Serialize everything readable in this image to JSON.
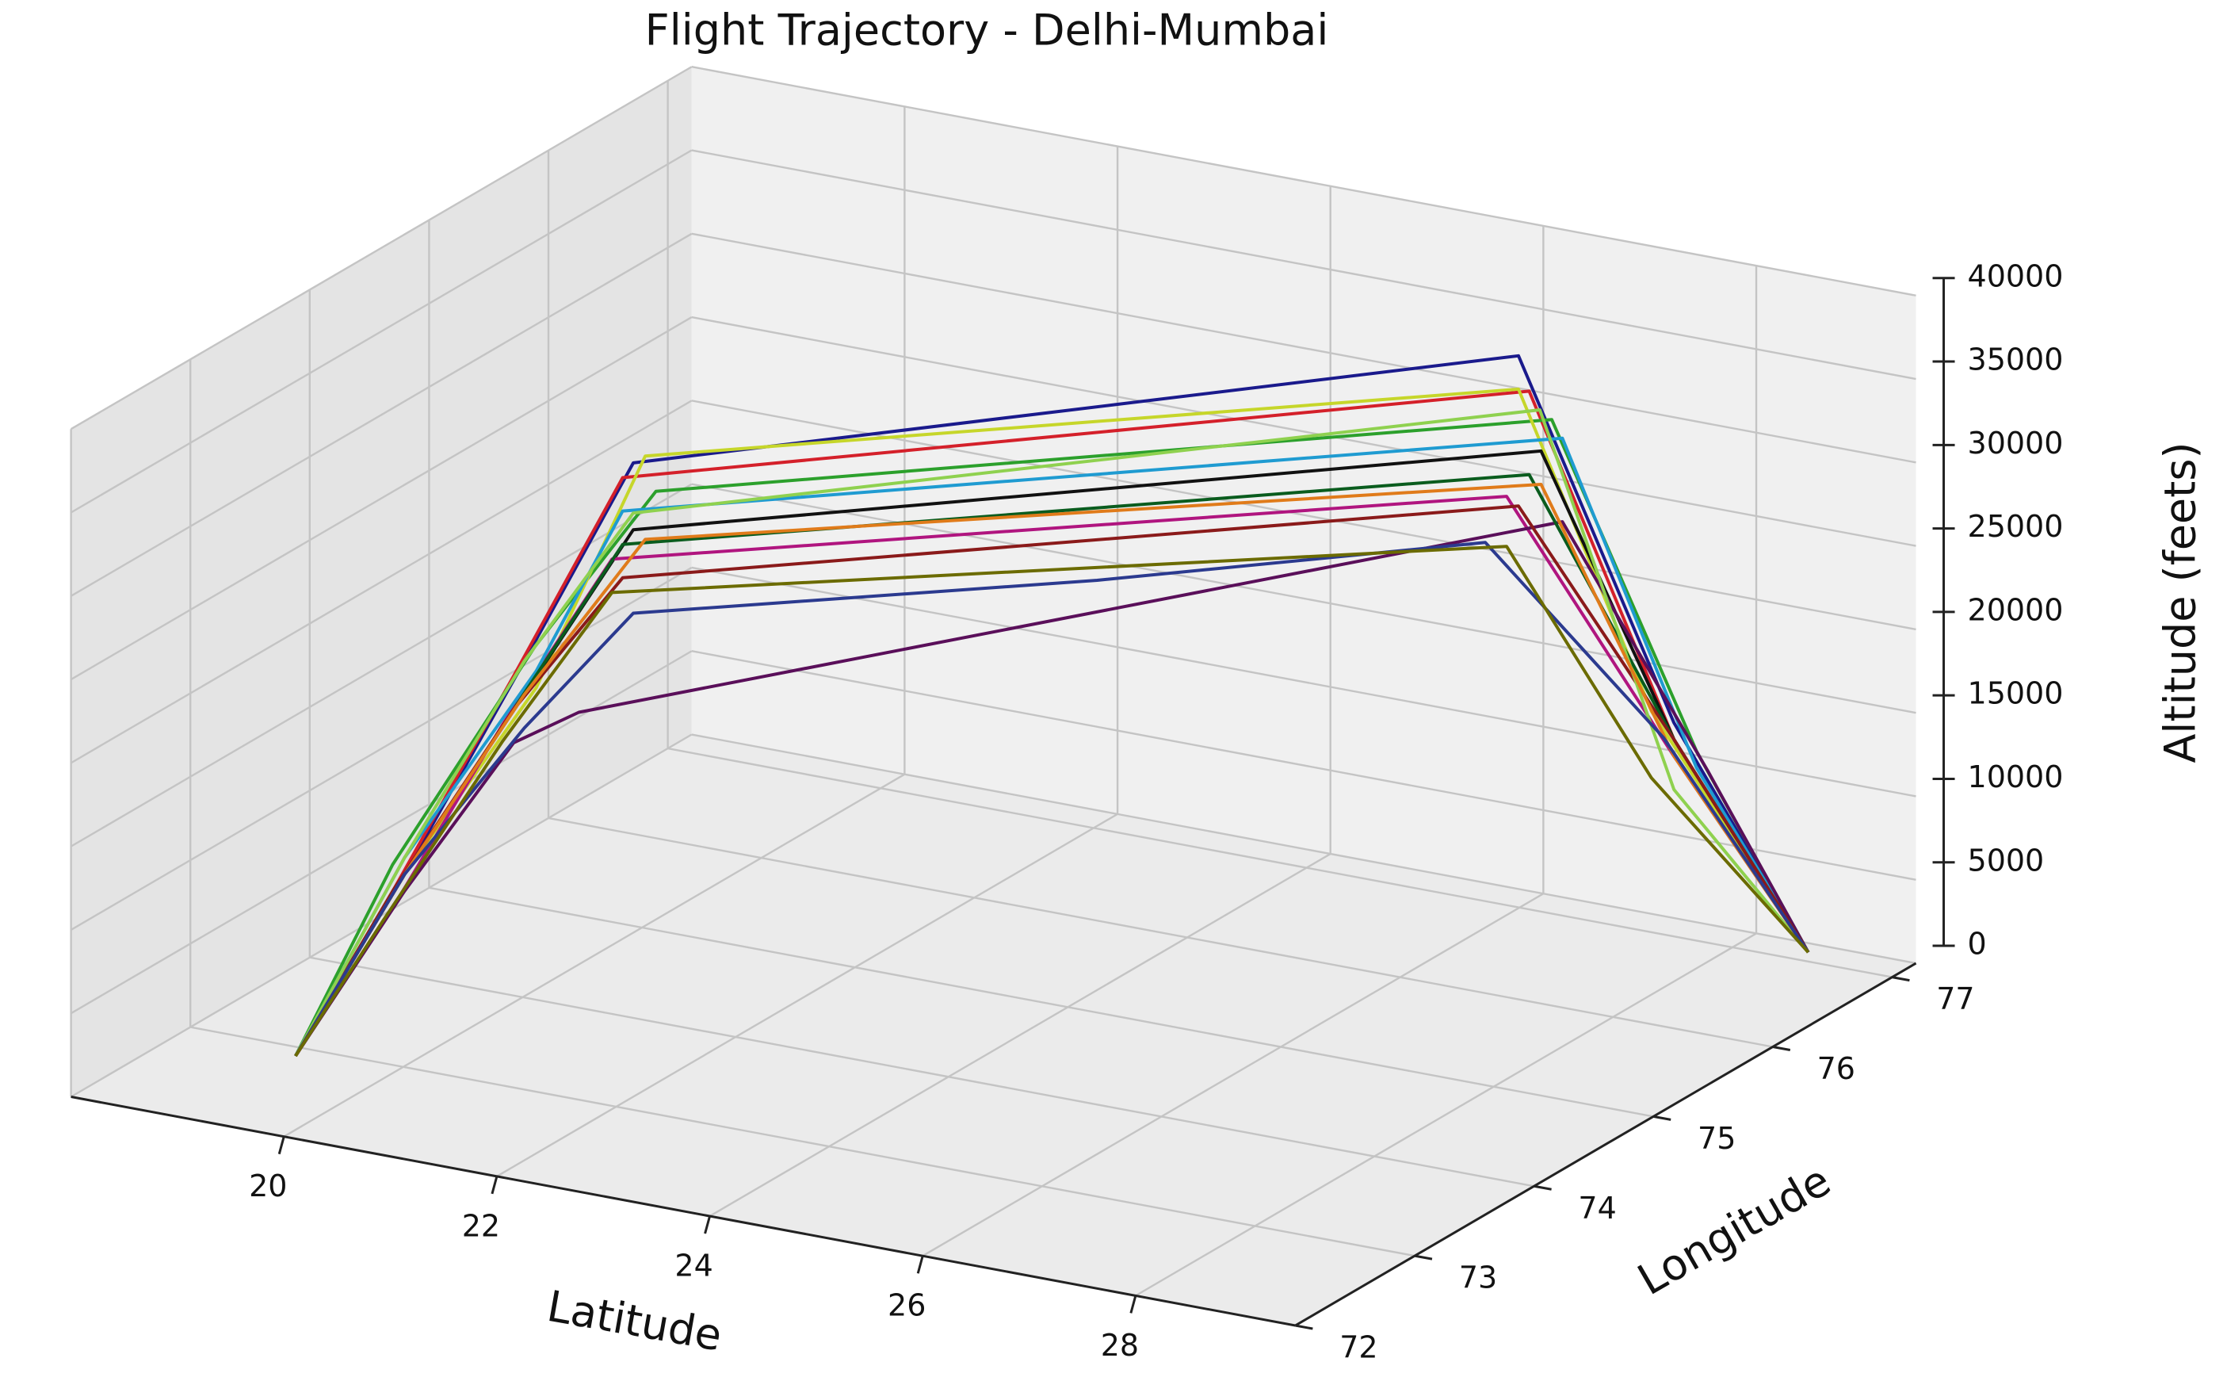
{
  "chart_data": {
    "type": "line3d",
    "title": "Flight Trajectory - Delhi-Mumbai",
    "x_label": "Latitude",
    "y_label": "Longitude",
    "z_label": "Altitude (feets)",
    "xlim": [
      18,
      29.5
    ],
    "xticks": [
      20,
      22,
      24,
      26,
      28
    ],
    "ylim": [
      72,
      77.2
    ],
    "yticks": [
      72,
      73,
      74,
      75,
      76,
      77
    ],
    "zlim": [
      0,
      40000
    ],
    "zticks": [
      0,
      5000,
      10000,
      15000,
      20000,
      25000,
      30000,
      35000,
      40000
    ],
    "grid": true,
    "series": [
      {
        "color": "#1a1a8c",
        "x": [
          19.1,
          19.9,
          20.8,
          21.6,
          27.0,
          27.9,
          28.6
        ],
        "y": [
          72.9,
          73.1,
          73.3,
          73.5,
          76.1,
          76.6,
          77.1
        ],
        "z": [
          0,
          11000,
          24000,
          36000,
          38000,
          15000,
          0
        ]
      },
      {
        "color": "#d4202a",
        "x": [
          19.1,
          19.8,
          20.7,
          21.5,
          27.1,
          27.9,
          28.6
        ],
        "y": [
          72.9,
          73.1,
          73.3,
          73.5,
          76.1,
          76.6,
          77.1
        ],
        "z": [
          0,
          10000,
          23000,
          35000,
          36000,
          14000,
          0
        ]
      },
      {
        "color": "#2ca02c",
        "x": [
          19.1,
          19.9,
          20.9,
          21.7,
          27.2,
          28.0,
          28.6
        ],
        "y": [
          72.9,
          73.0,
          73.3,
          73.6,
          76.2,
          76.7,
          77.1
        ],
        "z": [
          0,
          12000,
          25000,
          34000,
          34000,
          13000,
          0
        ]
      },
      {
        "color": "#c6d62a",
        "x": [
          19.1,
          19.8,
          20.8,
          21.6,
          27.0,
          27.8,
          28.6
        ],
        "y": [
          72.9,
          73.1,
          73.4,
          73.6,
          76.1,
          76.5,
          77.1
        ],
        "z": [
          0,
          10000,
          22000,
          36000,
          36000,
          16000,
          0
        ]
      },
      {
        "color": "#111111",
        "x": [
          19.1,
          19.9,
          20.8,
          21.6,
          27.1,
          27.9,
          28.6
        ],
        "y": [
          72.9,
          73.1,
          73.3,
          73.5,
          76.2,
          76.6,
          77.1
        ],
        "z": [
          0,
          11000,
          22000,
          32000,
          32000,
          14000,
          0
        ]
      },
      {
        "color": "#b0157f",
        "x": [
          19.1,
          19.8,
          20.6,
          21.4,
          27.0,
          27.9,
          28.6
        ],
        "y": [
          72.9,
          73.1,
          73.3,
          73.5,
          76.0,
          76.6,
          77.1
        ],
        "z": [
          0,
          9000,
          20000,
          30000,
          30000,
          13000,
          0
        ]
      },
      {
        "color": "#1f9bd1",
        "x": [
          19.1,
          19.9,
          20.8,
          21.5,
          27.3,
          28.0,
          28.6
        ],
        "y": [
          72.9,
          73.1,
          73.4,
          73.5,
          76.2,
          76.7,
          77.1
        ],
        "z": [
          0,
          12000,
          23000,
          33000,
          33000,
          12000,
          0
        ]
      },
      {
        "color": "#5a0f5a",
        "x": [
          19.1,
          19.9,
          20.7,
          21.2,
          27.3,
          28.1,
          28.6
        ],
        "y": [
          72.9,
          73.1,
          73.3,
          73.4,
          76.2,
          76.7,
          77.1
        ],
        "z": [
          0,
          10000,
          19000,
          21000,
          28000,
          12000,
          0
        ]
      },
      {
        "color": "#0a5c1e",
        "x": [
          19.1,
          19.9,
          20.7,
          21.5,
          27.1,
          27.9,
          28.6
        ],
        "y": [
          72.9,
          73.1,
          73.3,
          73.5,
          76.1,
          76.6,
          77.1
        ],
        "z": [
          0,
          11000,
          21000,
          31000,
          31000,
          14000,
          0
        ]
      },
      {
        "color": "#8a1a1a",
        "x": [
          19.1,
          19.8,
          20.7,
          21.5,
          27.0,
          27.9,
          28.6
        ],
        "y": [
          72.9,
          73.1,
          73.3,
          73.5,
          76.1,
          76.6,
          77.1
        ],
        "z": [
          0,
          10000,
          21000,
          29000,
          29000,
          14000,
          0
        ]
      },
      {
        "color": "#8fd14f",
        "x": [
          19.1,
          19.9,
          20.8,
          21.6,
          27.2,
          27.9,
          28.6
        ],
        "y": [
          72.9,
          73.1,
          73.3,
          73.5,
          76.1,
          76.6,
          77.1
        ],
        "z": [
          0,
          12000,
          24000,
          33000,
          35000,
          11000,
          0
        ]
      },
      {
        "color": "#e07b1a",
        "x": [
          19.1,
          19.9,
          20.8,
          21.6,
          27.1,
          27.9,
          28.6
        ],
        "y": [
          72.9,
          73.1,
          73.3,
          73.6,
          76.2,
          76.6,
          77.1
        ],
        "z": [
          0,
          11000,
          22000,
          31000,
          30000,
          13000,
          0
        ]
      },
      {
        "color": "#2b3a8f",
        "x": [
          19.1,
          19.9,
          20.8,
          21.6,
          24.5,
          26.8,
          27.8,
          28.6
        ],
        "y": [
          72.9,
          73.1,
          73.3,
          73.5,
          74.8,
          76.0,
          76.6,
          77.1
        ],
        "z": [
          0,
          11000,
          20000,
          27000,
          27000,
          27000,
          14000,
          0
        ]
      },
      {
        "color": "#6b6b00",
        "x": [
          19.1,
          19.7,
          20.6,
          21.4,
          27.0,
          27.8,
          28.6
        ],
        "y": [
          72.9,
          73.1,
          73.3,
          73.5,
          76.0,
          76.5,
          77.1
        ],
        "z": [
          0,
          8000,
          19000,
          28000,
          27000,
          12000,
          0
        ]
      }
    ]
  }
}
